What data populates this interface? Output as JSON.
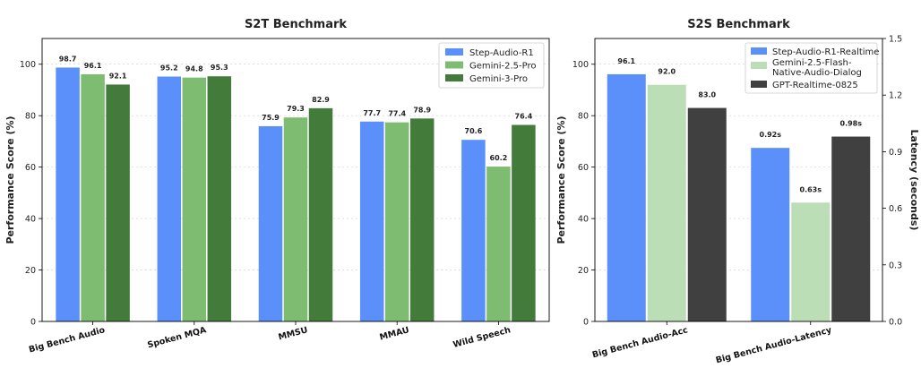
{
  "chart_data": [
    {
      "type": "bar",
      "title": "S2T Benchmark",
      "xlabel": "",
      "ylabel": "Performance Score (%)",
      "ylim": [
        0,
        110
      ],
      "yticks": [
        0,
        20,
        40,
        60,
        80,
        100
      ],
      "grid": true,
      "legend_position": "top-right",
      "categories": [
        "Big Bench Audio",
        "Spoken MQA",
        "MMSU",
        "MMAU",
        "Wild Speech"
      ],
      "series": [
        {
          "name": "Step-Audio-R1",
          "color": "#5b8ff9",
          "values": [
            98.7,
            95.2,
            75.9,
            77.7,
            70.6
          ],
          "labels": [
            "98.7",
            "95.2",
            "75.9",
            "77.7",
            "70.6"
          ]
        },
        {
          "name": "Gemini-2.5-Pro",
          "color": "#7ebc72",
          "values": [
            96.1,
            94.8,
            79.3,
            77.4,
            60.2
          ],
          "labels": [
            "96.1",
            "94.8",
            "79.3",
            "77.4",
            "60.2"
          ]
        },
        {
          "name": "Gemini-3-Pro",
          "color": "#437c3a",
          "values": [
            92.1,
            95.3,
            82.9,
            78.9,
            76.4
          ],
          "labels": [
            "92.1",
            "95.3",
            "82.9",
            "78.9",
            "76.4"
          ]
        }
      ]
    },
    {
      "type": "bar",
      "title": "S2S Benchmark",
      "xlabel": "",
      "ylabel": "Performance Score (%)",
      "ylabel_right": "Latency (seconds)",
      "ylim": [
        0,
        110
      ],
      "yticks": [
        0,
        20,
        40,
        60,
        80,
        100
      ],
      "ylim_right": [
        0,
        1.5
      ],
      "yticks_right": [
        "0.0",
        "0.3",
        "0.6",
        "0.9",
        "1.2",
        "1.5"
      ],
      "grid": true,
      "legend_position": "top-right",
      "categories": [
        "Big Bench Audio-Acc",
        "Big Bench Audio-Latency"
      ],
      "series": [
        {
          "name": "Step-Audio-R1-Realtime",
          "color": "#5b8ff9",
          "values": [
            96.1,
            0.92
          ],
          "labels": [
            "96.1",
            "0.92s"
          ]
        },
        {
          "name": "Gemini-2.5-Flash-Native-Audio-Dialog",
          "legend_lines": [
            "Gemini-2.5-Flash-",
            "Native-Audio-Dialog"
          ],
          "color": "#bcdeb6",
          "values": [
            92.0,
            0.63
          ],
          "labels": [
            "92.0",
            "0.63s"
          ]
        },
        {
          "name": "GPT-Realtime-0825",
          "color": "#404040",
          "values": [
            83.0,
            0.98
          ],
          "labels": [
            "83.0",
            "0.98s"
          ]
        }
      ]
    }
  ]
}
